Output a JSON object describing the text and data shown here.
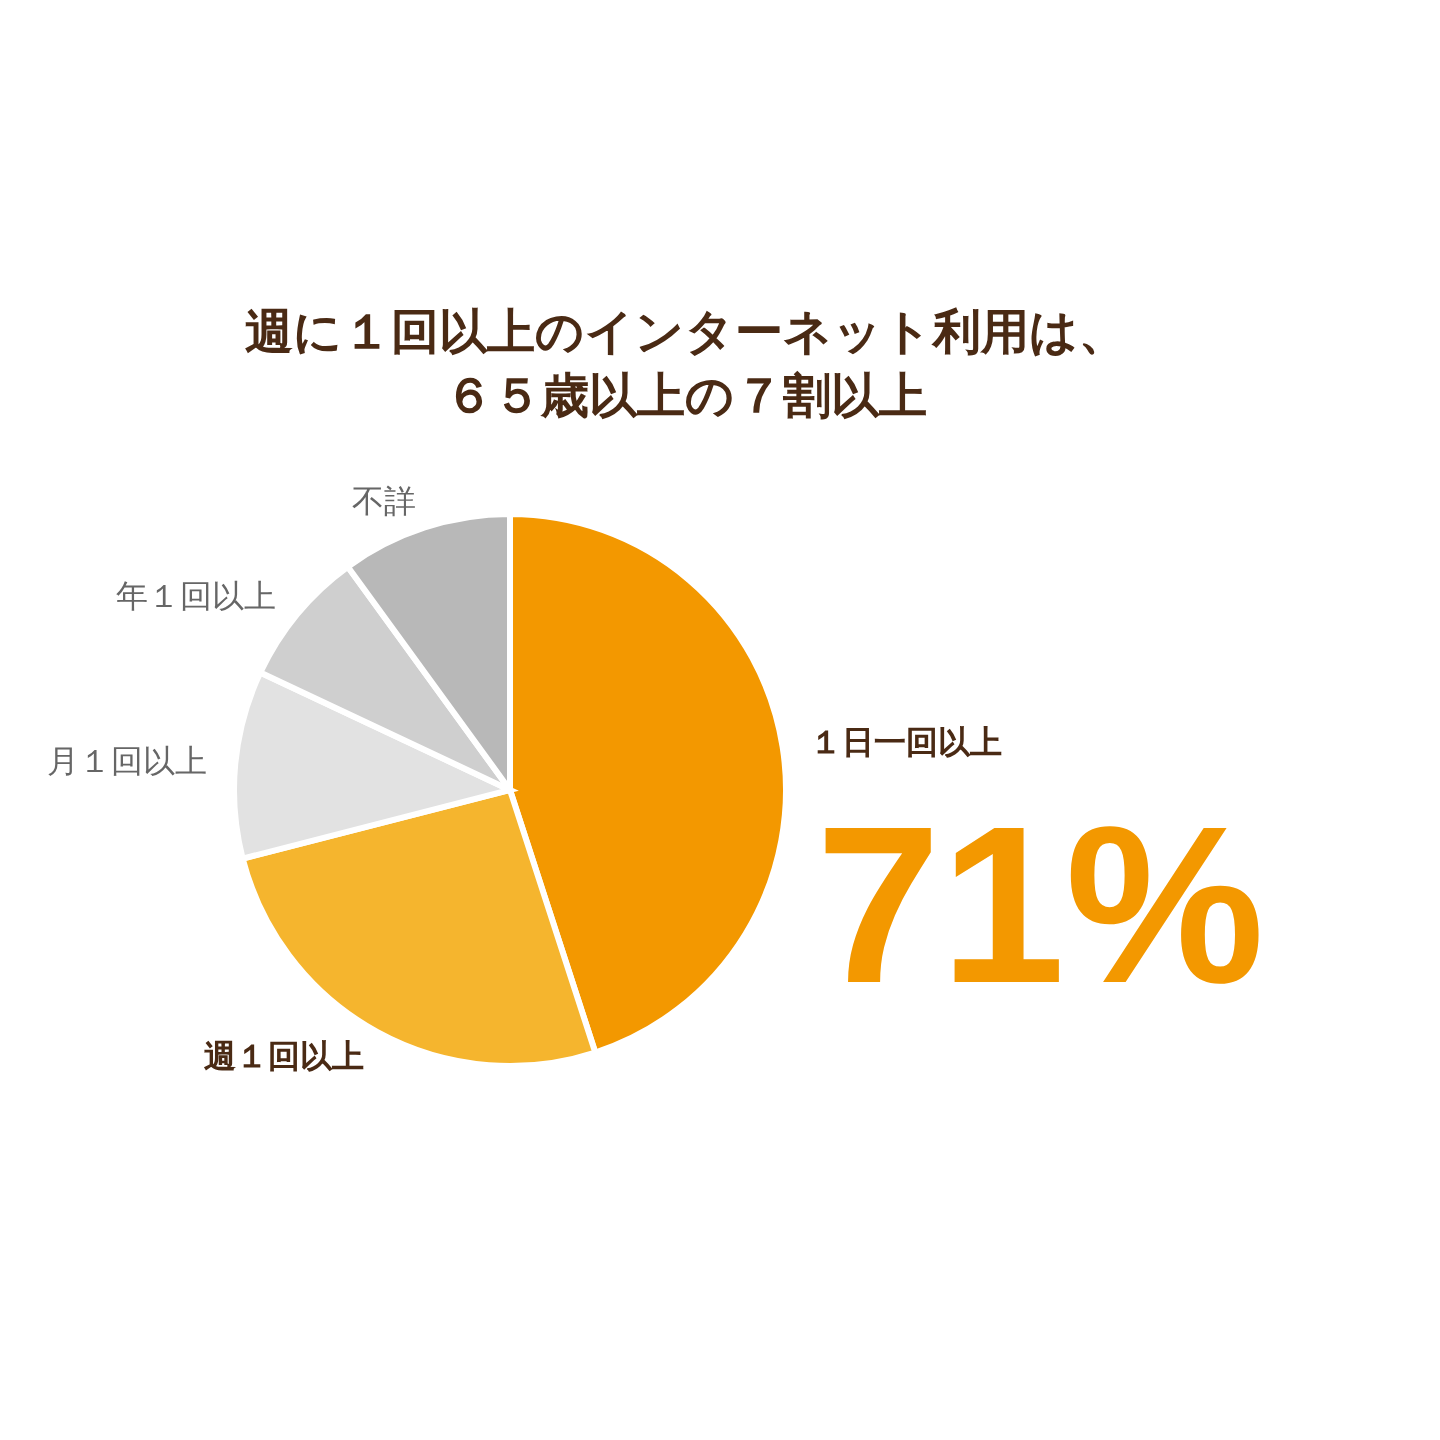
{
  "chart_data": {
    "type": "pie",
    "title": "週に１回以上のインターネット利用は、６５歳以上の７割以上",
    "categories": [
      "１日一回以上",
      "週１回以上",
      "月１回以上",
      "年１回以上",
      "不詳"
    ],
    "values": [
      45,
      26,
      11,
      8,
      10
    ],
    "colors": [
      "#f39800",
      "#f5b52e",
      "#e2e2e2",
      "#cfcfcf",
      "#b8b8b8"
    ],
    "annotations": [
      "71%"
    ],
    "legend": false
  }
}
